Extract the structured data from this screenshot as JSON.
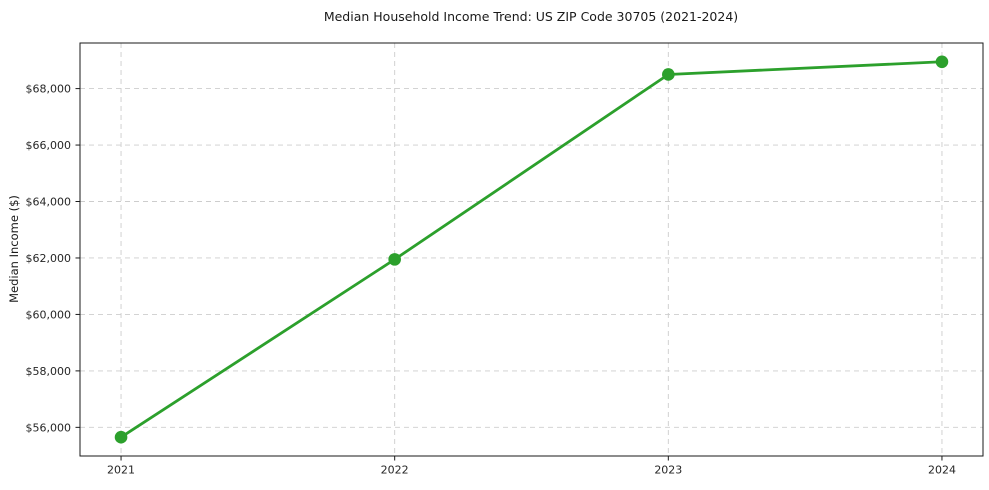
{
  "chart_data": {
    "type": "line",
    "title": "Median Household Income Trend: US ZIP Code 30705 (2021-2024)",
    "xlabel": "",
    "ylabel": "Median Income ($)",
    "x": [
      2021,
      2022,
      2023,
      2024
    ],
    "series": [
      {
        "name": "Median Household Income",
        "values": [
          55650,
          61950,
          68500,
          68950
        ]
      }
    ],
    "xtick_labels": [
      "2021",
      "2022",
      "2023",
      "2024"
    ],
    "ytick_values": [
      56000,
      58000,
      60000,
      62000,
      64000,
      66000,
      68000
    ],
    "ytick_labels": [
      "$56,000",
      "$58,000",
      "$60,000",
      "$62,000",
      "$64,000",
      "$66,000",
      "$68,000"
    ],
    "xlim": [
      2020.85,
      2024.15
    ],
    "ylim": [
      54985,
      69615
    ],
    "grid": true,
    "legend": "none",
    "line_color": "#2ca02c",
    "marker_color": "#2ca02c",
    "grid_color": "#cdcdcd",
    "spine_color": "#1a1a1a",
    "tick_label_color": "#262626"
  }
}
